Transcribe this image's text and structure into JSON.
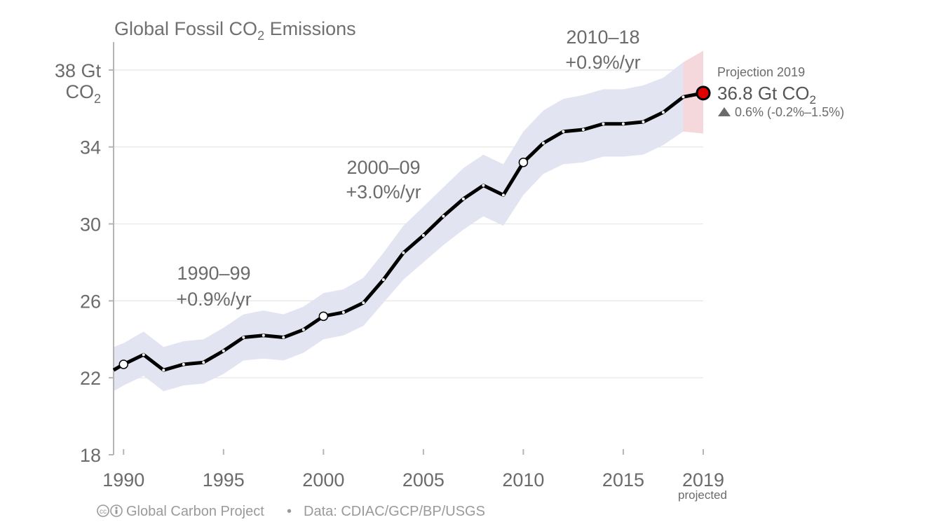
{
  "chart_data": {
    "type": "line",
    "title": "Global Fossil CO",
    "title_sub": "2",
    "title_tail": " Emissions",
    "ylabel_line1": "38 Gt",
    "ylabel_line2": "CO",
    "ylabel_sub": "2",
    "ylim": [
      18,
      40
    ],
    "xlim": [
      1989.5,
      2019
    ],
    "yticks": [
      "34",
      "30",
      "26",
      "22",
      "18"
    ],
    "ytick_values": [
      34,
      30,
      26,
      22,
      18
    ],
    "xticks": [
      "1990",
      "1995",
      "2000",
      "2005",
      "2010",
      "2015",
      "2019"
    ],
    "xtick_values": [
      1990,
      1995,
      2000,
      2005,
      2010,
      2015,
      2019
    ],
    "xtick_sublabel": "projected",
    "grid": true,
    "series": [
      {
        "x": [
          1989.5,
          1990,
          1991,
          1992,
          1993,
          1994,
          1995,
          1996,
          1997,
          1998,
          1999,
          2000,
          2001,
          2002,
          2003,
          2004,
          2005,
          2006,
          2007,
          2008,
          2009,
          2010,
          2011,
          2012,
          2013,
          2014,
          2015,
          2016,
          2017,
          2018,
          2019
        ],
        "values": [
          22.4,
          22.7,
          23.2,
          22.4,
          22.7,
          22.8,
          23.4,
          24.1,
          24.2,
          24.1,
          24.5,
          25.2,
          25.4,
          25.9,
          27.1,
          28.5,
          29.4,
          30.4,
          31.3,
          32.0,
          31.5,
          33.2,
          34.2,
          34.8,
          34.9,
          35.2,
          35.2,
          35.3,
          35.8,
          36.6,
          36.8
        ],
        "lower": [
          21.3,
          21.6,
          22.1,
          21.3,
          21.6,
          21.7,
          22.2,
          22.9,
          23.0,
          22.9,
          23.3,
          24.0,
          24.2,
          24.7,
          25.9,
          27.1,
          28.0,
          28.9,
          29.7,
          30.4,
          29.9,
          31.5,
          32.6,
          33.1,
          33.2,
          33.5,
          33.5,
          33.6,
          34.1,
          34.8,
          34.7
        ],
        "upper": [
          23.6,
          23.8,
          24.4,
          23.6,
          23.9,
          24.0,
          24.6,
          25.3,
          25.5,
          25.3,
          25.7,
          26.4,
          26.6,
          27.2,
          28.5,
          29.9,
          30.9,
          31.9,
          32.9,
          33.6,
          33.1,
          34.8,
          35.9,
          36.5,
          36.7,
          37.0,
          37.0,
          37.2,
          37.6,
          38.4,
          39.0
        ]
      }
    ],
    "projection_start": 2018,
    "highlight_years": [
      1990,
      2000,
      2010
    ],
    "annotations": [
      {
        "period": "1990–99",
        "rate": "+0.9%/yr"
      },
      {
        "period": "2000–09",
        "rate": "+3.0%/yr"
      },
      {
        "period": "2010–18",
        "rate": "+0.9%/yr"
      }
    ],
    "projection": {
      "label": "Projection 2019",
      "value": "36.8 Gt CO",
      "value_sub": "2",
      "change": "0.6% (-0.2%–1.5%)"
    },
    "colors": {
      "line": "#000000",
      "band": "#e3e4f2",
      "band_projection": "#f4d8dc",
      "projection_point": "#e00000",
      "grid": "#e6e6e6",
      "axis": "#b5b5b5"
    }
  },
  "footer": {
    "icons": "cc-by-icons",
    "credit": "Global Carbon Project",
    "separator": "•",
    "source": "Data: CDIAC/GCP/BP/USGS"
  }
}
